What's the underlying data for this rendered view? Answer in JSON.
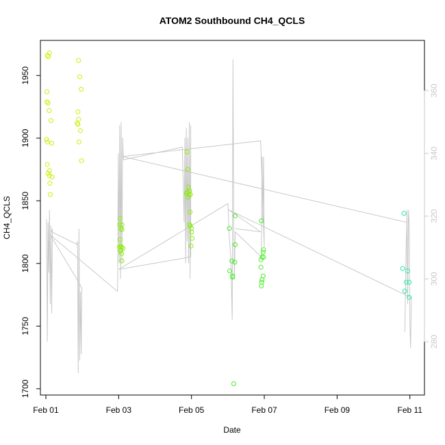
{
  "chart_data": {
    "type": "scatter",
    "title": "ATOM2 Southbound CH4_QCLS",
    "xlabel": "Date",
    "ylabel": "CH4_QCLS",
    "xlim": [
      -0.15,
      10.4
    ],
    "ylim": [
      1695,
      1978
    ],
    "y2lim": [
      263,
      376
    ],
    "x_ticks": [
      {
        "value": 0,
        "label": "Feb 01"
      },
      {
        "value": 2,
        "label": "Feb 03"
      },
      {
        "value": 4,
        "label": "Feb 05"
      },
      {
        "value": 6,
        "label": "Feb 07"
      },
      {
        "value": 8,
        "label": "Feb 09"
      },
      {
        "value": 10,
        "label": "Feb 11"
      }
    ],
    "y_ticks": [
      1700,
      1750,
      1800,
      1850,
      1900,
      1950
    ],
    "y2_ticks": [
      280,
      300,
      320,
      340,
      360
    ],
    "grid": false,
    "legend": "none",
    "series": [
      {
        "name": "CH4_QCLS",
        "color": "#c8f000",
        "points": [
          [
            0.04,
            1966
          ],
          [
            0.1,
            1968
          ],
          [
            0.07,
            1965
          ],
          [
            0.03,
            1937
          ],
          [
            0.03,
            1929
          ],
          [
            0.06,
            1928
          ],
          [
            0.09,
            1922
          ],
          [
            0.14,
            1914
          ],
          [
            0.02,
            1899
          ],
          [
            0.04,
            1897
          ],
          [
            0.16,
            1896
          ],
          [
            0.04,
            1879
          ],
          [
            0.1,
            1874
          ],
          [
            0.06,
            1872
          ],
          [
            0.1,
            1870
          ],
          [
            0.17,
            1869
          ],
          [
            0.11,
            1864
          ],
          [
            0.12,
            1855
          ],
          [
            0.9,
            1962
          ],
          [
            0.93,
            1949
          ],
          [
            0.97,
            1939
          ],
          [
            0.88,
            1921
          ],
          [
            0.9,
            1915
          ],
          [
            0.86,
            1912
          ],
          [
            0.88,
            1911
          ],
          [
            0.95,
            1906
          ],
          [
            0.91,
            1897
          ],
          [
            0.98,
            1882
          ]
        ]
      },
      {
        "name": "CH4_QCLS",
        "color": "#88ee00",
        "points": [
          [
            2.04,
            1836
          ],
          [
            2.03,
            1831
          ],
          [
            2.09,
            1831
          ],
          [
            2.06,
            1828
          ],
          [
            2.09,
            1827
          ],
          [
            2.04,
            1819
          ],
          [
            2.05,
            1814
          ],
          [
            2.08,
            1813
          ],
          [
            2.02,
            1813
          ],
          [
            2.07,
            1811
          ],
          [
            2.05,
            1810
          ],
          [
            2.12,
            1812
          ],
          [
            2.08,
            1808
          ],
          [
            2.09,
            1802
          ],
          [
            3.88,
            1889
          ],
          [
            3.9,
            1875
          ],
          [
            3.92,
            1861
          ],
          [
            3.95,
            1858
          ],
          [
            3.88,
            1857
          ],
          [
            3.86,
            1856
          ],
          [
            3.93,
            1855
          ],
          [
            3.97,
            1855
          ],
          [
            3.9,
            1853
          ],
          [
            3.96,
            1841
          ],
          [
            3.94,
            1831
          ],
          [
            3.97,
            1830
          ],
          [
            4.0,
            1828
          ],
          [
            4.0,
            1825
          ],
          [
            4.02,
            1820
          ],
          [
            3.99,
            1814
          ]
        ]
      },
      {
        "name": "CH4_QCLS",
        "color": "#44ee22",
        "points": [
          [
            5.04,
            1828
          ],
          [
            5.2,
            1838
          ],
          [
            5.2,
            1815
          ],
          [
            5.11,
            1802
          ],
          [
            5.19,
            1801
          ],
          [
            5.05,
            1794
          ],
          [
            5.13,
            1790
          ],
          [
            5.13,
            1789
          ],
          [
            5.16,
            1704
          ],
          [
            5.92,
            1834
          ],
          [
            5.98,
            1811
          ],
          [
            5.97,
            1809
          ],
          [
            5.94,
            1805
          ],
          [
            5.98,
            1805
          ],
          [
            5.91,
            1803
          ],
          [
            5.91,
            1797
          ],
          [
            5.97,
            1790
          ],
          [
            5.94,
            1787
          ],
          [
            5.93,
            1785
          ],
          [
            5.92,
            1782
          ]
        ]
      },
      {
        "name": "CH4_QCLS",
        "color": "#22eea0",
        "points": [
          [
            9.84,
            1840
          ],
          [
            9.8,
            1796
          ],
          [
            9.94,
            1794
          ],
          [
            9.9,
            1785
          ],
          [
            9.98,
            1785
          ],
          [
            9.86,
            1778
          ],
          [
            9.98,
            1773
          ]
        ]
      }
    ],
    "line_series": {
      "name": "secondary axis trace",
      "axis": "right",
      "color": "#c8c8c8",
      "points": [
        [
          0.02,
          319
        ],
        [
          0.04,
          280
        ],
        [
          0.06,
          318
        ],
        [
          0.08,
          302
        ],
        [
          0.1,
          322
        ],
        [
          0.12,
          292
        ],
        [
          0.14,
          317
        ],
        [
          0.16,
          289
        ],
        [
          0.18,
          316
        ],
        [
          0.16,
          315
        ],
        [
          0.85,
          311
        ],
        [
          0.87,
          312
        ],
        [
          0.89,
          270
        ],
        [
          0.91,
          316
        ],
        [
          0.93,
          274
        ],
        [
          0.95,
          296
        ],
        [
          0.97,
          276
        ],
        [
          0.99,
          297
        ],
        [
          0.9,
          299
        ],
        [
          0.12,
          314
        ],
        [
          1.97,
          296
        ],
        [
          1.99,
          340
        ],
        [
          2.01,
          305
        ],
        [
          2.03,
          349
        ],
        [
          2.05,
          300
        ],
        [
          2.07,
          350
        ],
        [
          2.09,
          305
        ],
        [
          2.11,
          345
        ],
        [
          2.13,
          338
        ],
        [
          2.15,
          338
        ],
        [
          3.75,
          342
        ],
        [
          3.8,
          318
        ],
        [
          3.82,
          345
        ],
        [
          3.84,
          305
        ],
        [
          3.86,
          348
        ],
        [
          3.88,
          312
        ],
        [
          3.9,
          345
        ],
        [
          3.92,
          305
        ],
        [
          3.94,
          350
        ],
        [
          3.96,
          300
        ],
        [
          3.98,
          349
        ],
        [
          3.98,
          307
        ],
        [
          2.0,
          303
        ],
        [
          5.0,
          324
        ],
        [
          5.04,
          313
        ],
        [
          5.08,
          307
        ],
        [
          5.12,
          287
        ],
        [
          5.14,
          370
        ],
        [
          5.16,
          317
        ],
        [
          5.18,
          300
        ],
        [
          5.2,
          315
        ],
        [
          5.92,
          307
        ],
        [
          5.94,
          339
        ],
        [
          5.96,
          318
        ],
        [
          5.98,
          339
        ],
        [
          6.0,
          310
        ],
        [
          5.9,
          344
        ],
        [
          2.1,
          339
        ],
        [
          9.92,
          318
        ],
        [
          9.9,
          312
        ],
        [
          9.86,
          283
        ],
        [
          9.92,
          322
        ],
        [
          9.94,
          292
        ],
        [
          9.96,
          322
        ],
        [
          9.98,
          318
        ],
        [
          10.0,
          286
        ],
        [
          10.02,
          278
        ],
        [
          10.04,
          294
        ],
        [
          5.02,
          322
        ],
        [
          5.9,
          315
        ],
        [
          5.2,
          316
        ]
      ]
    }
  }
}
